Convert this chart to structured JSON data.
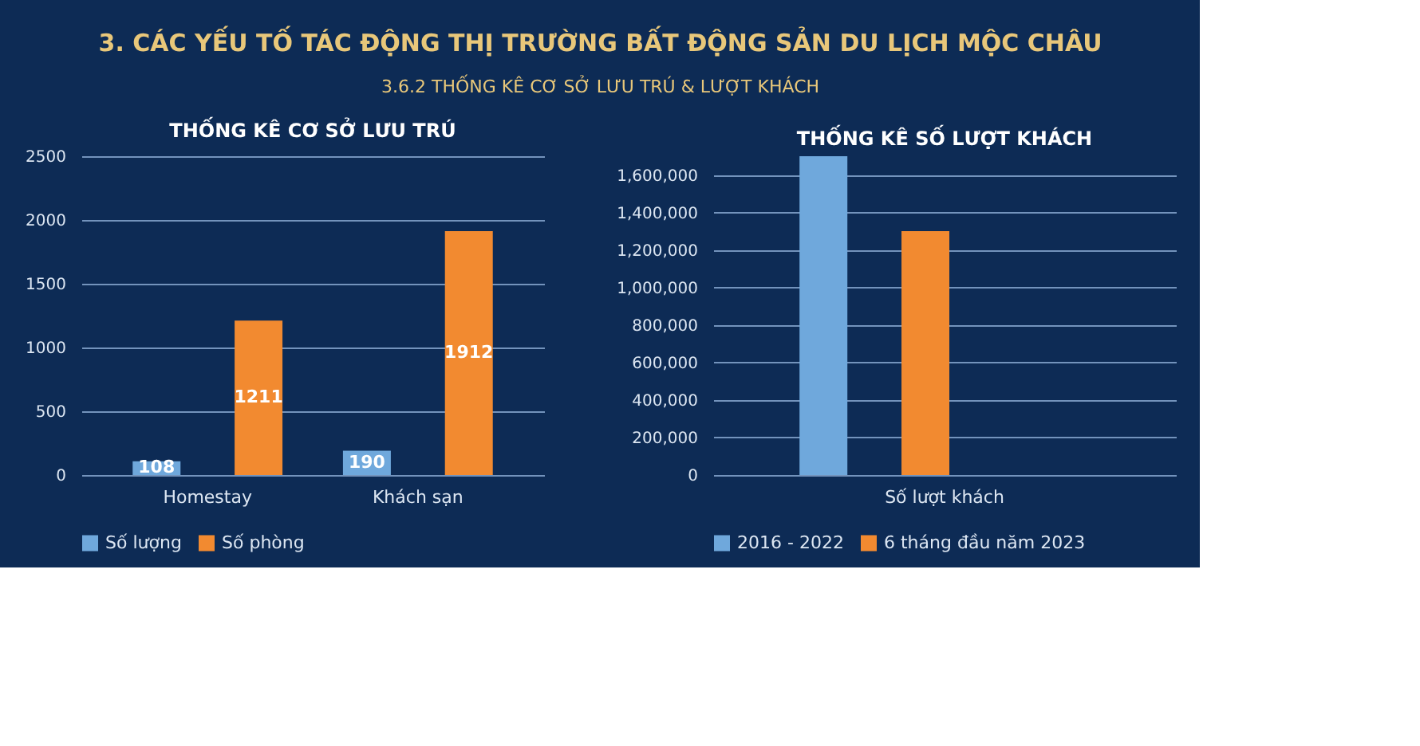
{
  "chart_data": [
    {
      "type": "bar",
      "title": "THỐNG KÊ CƠ SỞ LƯU TRÚ",
      "annotations": [
        "3. CÁC YẾU TỐ TÁC ĐỘNG THỊ TRƯỜNG BẤT ĐỘNG SẢN DU LỊCH MỘC CHÂU",
        "3.6.2 THỐNG KÊ CƠ SỞ LƯU TRÚ & LƯỢT KHÁCH"
      ],
      "categories": [
        "Homestay",
        "Khách sạn"
      ],
      "series": [
        {
          "name": "Số lượng",
          "color": "#6fa8dc",
          "values": [
            108,
            190
          ]
        },
        {
          "name": "Số phòng",
          "color": "#f28a30",
          "values": [
            1211,
            1912
          ]
        }
      ],
      "ylim": [
        0,
        2500
      ],
      "yticks": [
        0,
        500,
        1000,
        1500,
        2000,
        2500
      ],
      "grid": "y",
      "legend": "bottom",
      "data_labels": true
    },
    {
      "type": "bar",
      "title": "THỐNG KÊ SỐ LƯỢT KHÁCH",
      "categories": [
        "Số lượt khách"
      ],
      "series": [
        {
          "name": "2016 - 2022",
          "color": "#6fa8dc",
          "values": [
            1700000
          ]
        },
        {
          "name": "6 tháng đầu năm 2023",
          "color": "#f28a30",
          "values": [
            1300000
          ]
        }
      ],
      "ylim": [
        0,
        1700000
      ],
      "yticks": [
        {
          "value": 0,
          "label": "0"
        },
        {
          "value": 200000,
          "label": "200,000"
        },
        {
          "value": 400000,
          "label": "400,000"
        },
        {
          "value": 600000,
          "label": "600,000"
        },
        {
          "value": 800000,
          "label": "800,000"
        },
        {
          "value": 1000000,
          "label": "1,000,000"
        },
        {
          "value": 1200000,
          "label": "1,200,000"
        },
        {
          "value": 1400000,
          "label": "1,400,000"
        },
        {
          "value": 1600000,
          "label": "1,600,000"
        }
      ],
      "grid": "y",
      "legend": "bottom"
    }
  ]
}
